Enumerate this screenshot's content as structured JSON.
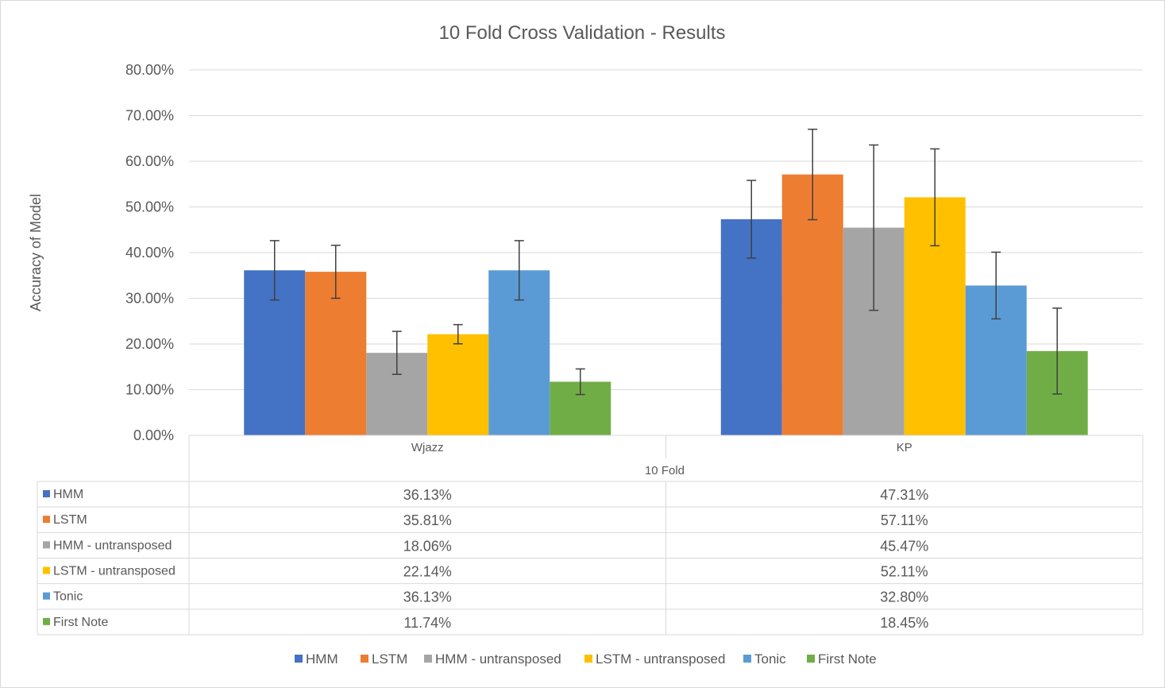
{
  "chart_data": {
    "type": "bar",
    "title": "10 Fold Cross Validation - Results",
    "xlabel": "10 Fold",
    "ylabel": "Accuracy of Model",
    "categories": [
      "Wjazz",
      "KP"
    ],
    "ylim": [
      0,
      0.8
    ],
    "y_ticks": [
      "0.00%",
      "10.00%",
      "20.00%",
      "30.00%",
      "40.00%",
      "50.00%",
      "60.00%",
      "70.00%",
      "80.00%"
    ],
    "grid": true,
    "legend_position": "bottom",
    "series": [
      {
        "name": "HMM",
        "color": "#4472C4",
        "values": [
          0.3613,
          0.4731
        ],
        "error": [
          0.065,
          0.085
        ],
        "labels": [
          "36.13%",
          "47.31%"
        ]
      },
      {
        "name": "LSTM",
        "color": "#ED7D31",
        "values": [
          0.3581,
          0.5711
        ],
        "error": [
          0.058,
          0.099
        ],
        "labels": [
          "35.81%",
          "57.11%"
        ]
      },
      {
        "name": "HMM - untransposed",
        "color": "#A5A5A5",
        "values": [
          0.1806,
          0.4547
        ],
        "error": [
          0.047,
          0.181
        ],
        "labels": [
          "18.06%",
          "45.47%"
        ]
      },
      {
        "name": "LSTM - untransposed",
        "color": "#FFC000",
        "values": [
          0.2214,
          0.5211
        ],
        "error": [
          0.021,
          0.106
        ],
        "labels": [
          "22.14%",
          "52.11%"
        ]
      },
      {
        "name": "Tonic",
        "color": "#5B9BD5",
        "values": [
          0.3613,
          0.328
        ],
        "error": [
          0.065,
          0.073
        ],
        "labels": [
          "36.13%",
          "32.80%"
        ]
      },
      {
        "name": "First Note",
        "color": "#70AD47",
        "values": [
          0.1174,
          0.1845
        ],
        "error": [
          0.028,
          0.094
        ],
        "labels": [
          "11.74%",
          "18.45%"
        ]
      }
    ]
  }
}
